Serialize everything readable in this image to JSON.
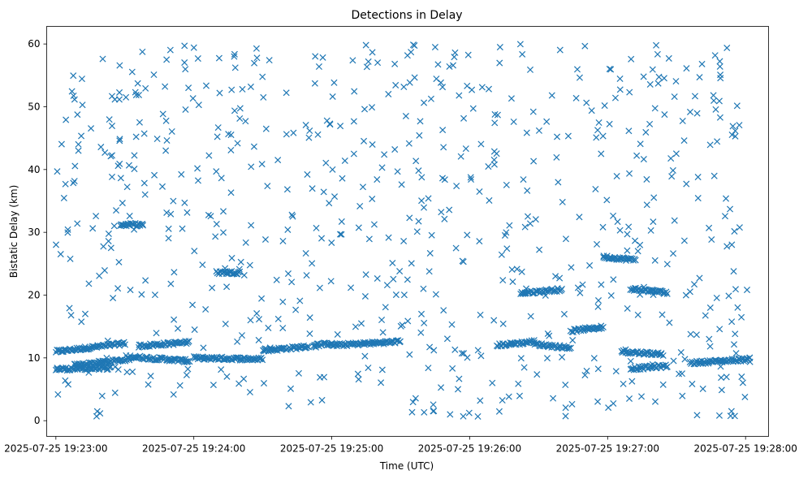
{
  "chart_data": {
    "type": "scatter",
    "title": "Detections in Delay",
    "xlabel": "Time (UTC)",
    "ylabel": "Bistatic Delay (km)",
    "marker": "x",
    "color": "#1f77b4",
    "grid": false,
    "x_axis": {
      "type": "time",
      "range": [
        "2025-07-25 19:22:56",
        "2025-07-25 19:28:10"
      ],
      "ticks": [
        {
          "value": "2025-07-25 19:23:00",
          "label": "2025-07-25 19:23:00"
        },
        {
          "value": "2025-07-25 19:24:00",
          "label": "2025-07-25 19:24:00"
        },
        {
          "value": "2025-07-25 19:25:00",
          "label": "2025-07-25 19:25:00"
        },
        {
          "value": "2025-07-25 19:26:00",
          "label": "2025-07-25 19:26:00"
        },
        {
          "value": "2025-07-25 19:27:00",
          "label": "2025-07-25 19:27:00"
        },
        {
          "value": "2025-07-25 19:28:00",
          "label": "2025-07-25 19:28:00"
        }
      ]
    },
    "y_axis": {
      "range": [
        -2.5,
        62.8
      ],
      "ticks": [
        0,
        10,
        20,
        30,
        40,
        50,
        60
      ]
    },
    "tracks": [
      {
        "t_start": "2025-07-25 19:23:00",
        "t_end": "2025-07-25 19:23:30",
        "delay_start": 11.0,
        "delay_end": 12.3
      },
      {
        "t_start": "2025-07-25 19:23:00",
        "t_end": "2025-07-25 19:23:24",
        "delay_start": 8.2,
        "delay_end": 8.4
      },
      {
        "t_start": "2025-07-25 19:23:08",
        "t_end": "2025-07-25 19:23:32",
        "delay_start": 8.8,
        "delay_end": 9.8
      },
      {
        "t_start": "2025-07-25 19:23:36",
        "t_end": "2025-07-25 19:23:58",
        "delay_start": 11.9,
        "delay_end": 12.5
      },
      {
        "t_start": "2025-07-25 19:23:32",
        "t_end": "2025-07-25 19:23:58",
        "delay_start": 10.2,
        "delay_end": 9.5
      },
      {
        "t_start": "2025-07-25 19:23:28",
        "t_end": "2025-07-25 19:23:38",
        "delay_start": 31.2,
        "delay_end": 31.2
      },
      {
        "t_start": "2025-07-25 19:24:00",
        "t_end": "2025-07-25 19:24:30",
        "delay_start": 10.0,
        "delay_end": 9.8
      },
      {
        "t_start": "2025-07-25 19:24:10",
        "t_end": "2025-07-25 19:24:20",
        "delay_start": 23.6,
        "delay_end": 23.6
      },
      {
        "t_start": "2025-07-25 19:24:30",
        "t_end": "2025-07-25 19:24:50",
        "delay_start": 11.2,
        "delay_end": 11.8
      },
      {
        "t_start": "2025-07-25 19:24:52",
        "t_end": "2025-07-25 19:25:00",
        "delay_start": 12.0,
        "delay_end": 12.3
      },
      {
        "t_start": "2025-07-25 19:25:00",
        "t_end": "2025-07-25 19:25:30",
        "delay_start": 12.0,
        "delay_end": 12.6
      },
      {
        "t_start": "2025-07-25 19:26:12",
        "t_end": "2025-07-25 19:26:28",
        "delay_start": 12.0,
        "delay_end": 12.6
      },
      {
        "t_start": "2025-07-25 19:26:22",
        "t_end": "2025-07-25 19:26:40",
        "delay_start": 20.3,
        "delay_end": 20.9
      },
      {
        "t_start": "2025-07-25 19:26:28",
        "t_end": "2025-07-25 19:26:44",
        "delay_start": 12.2,
        "delay_end": 11.6
      },
      {
        "t_start": "2025-07-25 19:26:44",
        "t_end": "2025-07-25 19:26:58",
        "delay_start": 14.3,
        "delay_end": 14.9
      },
      {
        "t_start": "2025-07-25 19:26:58",
        "t_end": "2025-07-25 19:27:12",
        "delay_start": 26.1,
        "delay_end": 25.6
      },
      {
        "t_start": "2025-07-25 19:27:10",
        "t_end": "2025-07-25 19:27:26",
        "delay_start": 21.0,
        "delay_end": 20.4
      },
      {
        "t_start": "2025-07-25 19:27:06",
        "t_end": "2025-07-25 19:27:24",
        "delay_start": 11.0,
        "delay_end": 10.6
      },
      {
        "t_start": "2025-07-25 19:27:10",
        "t_end": "2025-07-25 19:27:26",
        "delay_start": 8.3,
        "delay_end": 8.7
      },
      {
        "t_start": "2025-07-25 19:27:36",
        "t_end": "2025-07-25 19:28:02",
        "delay_start": 9.2,
        "delay_end": 9.8
      }
    ],
    "clutter": {
      "note": "Approximately 700 additional isolated detections spread uniformly between about 0.5 and 60 km over 19:23:00–19:28:02",
      "t_start": "2025-07-25 19:23:00",
      "t_end": "2025-07-25 19:28:02",
      "delay_min": 0.5,
      "delay_max": 60.0,
      "count": 700
    }
  }
}
